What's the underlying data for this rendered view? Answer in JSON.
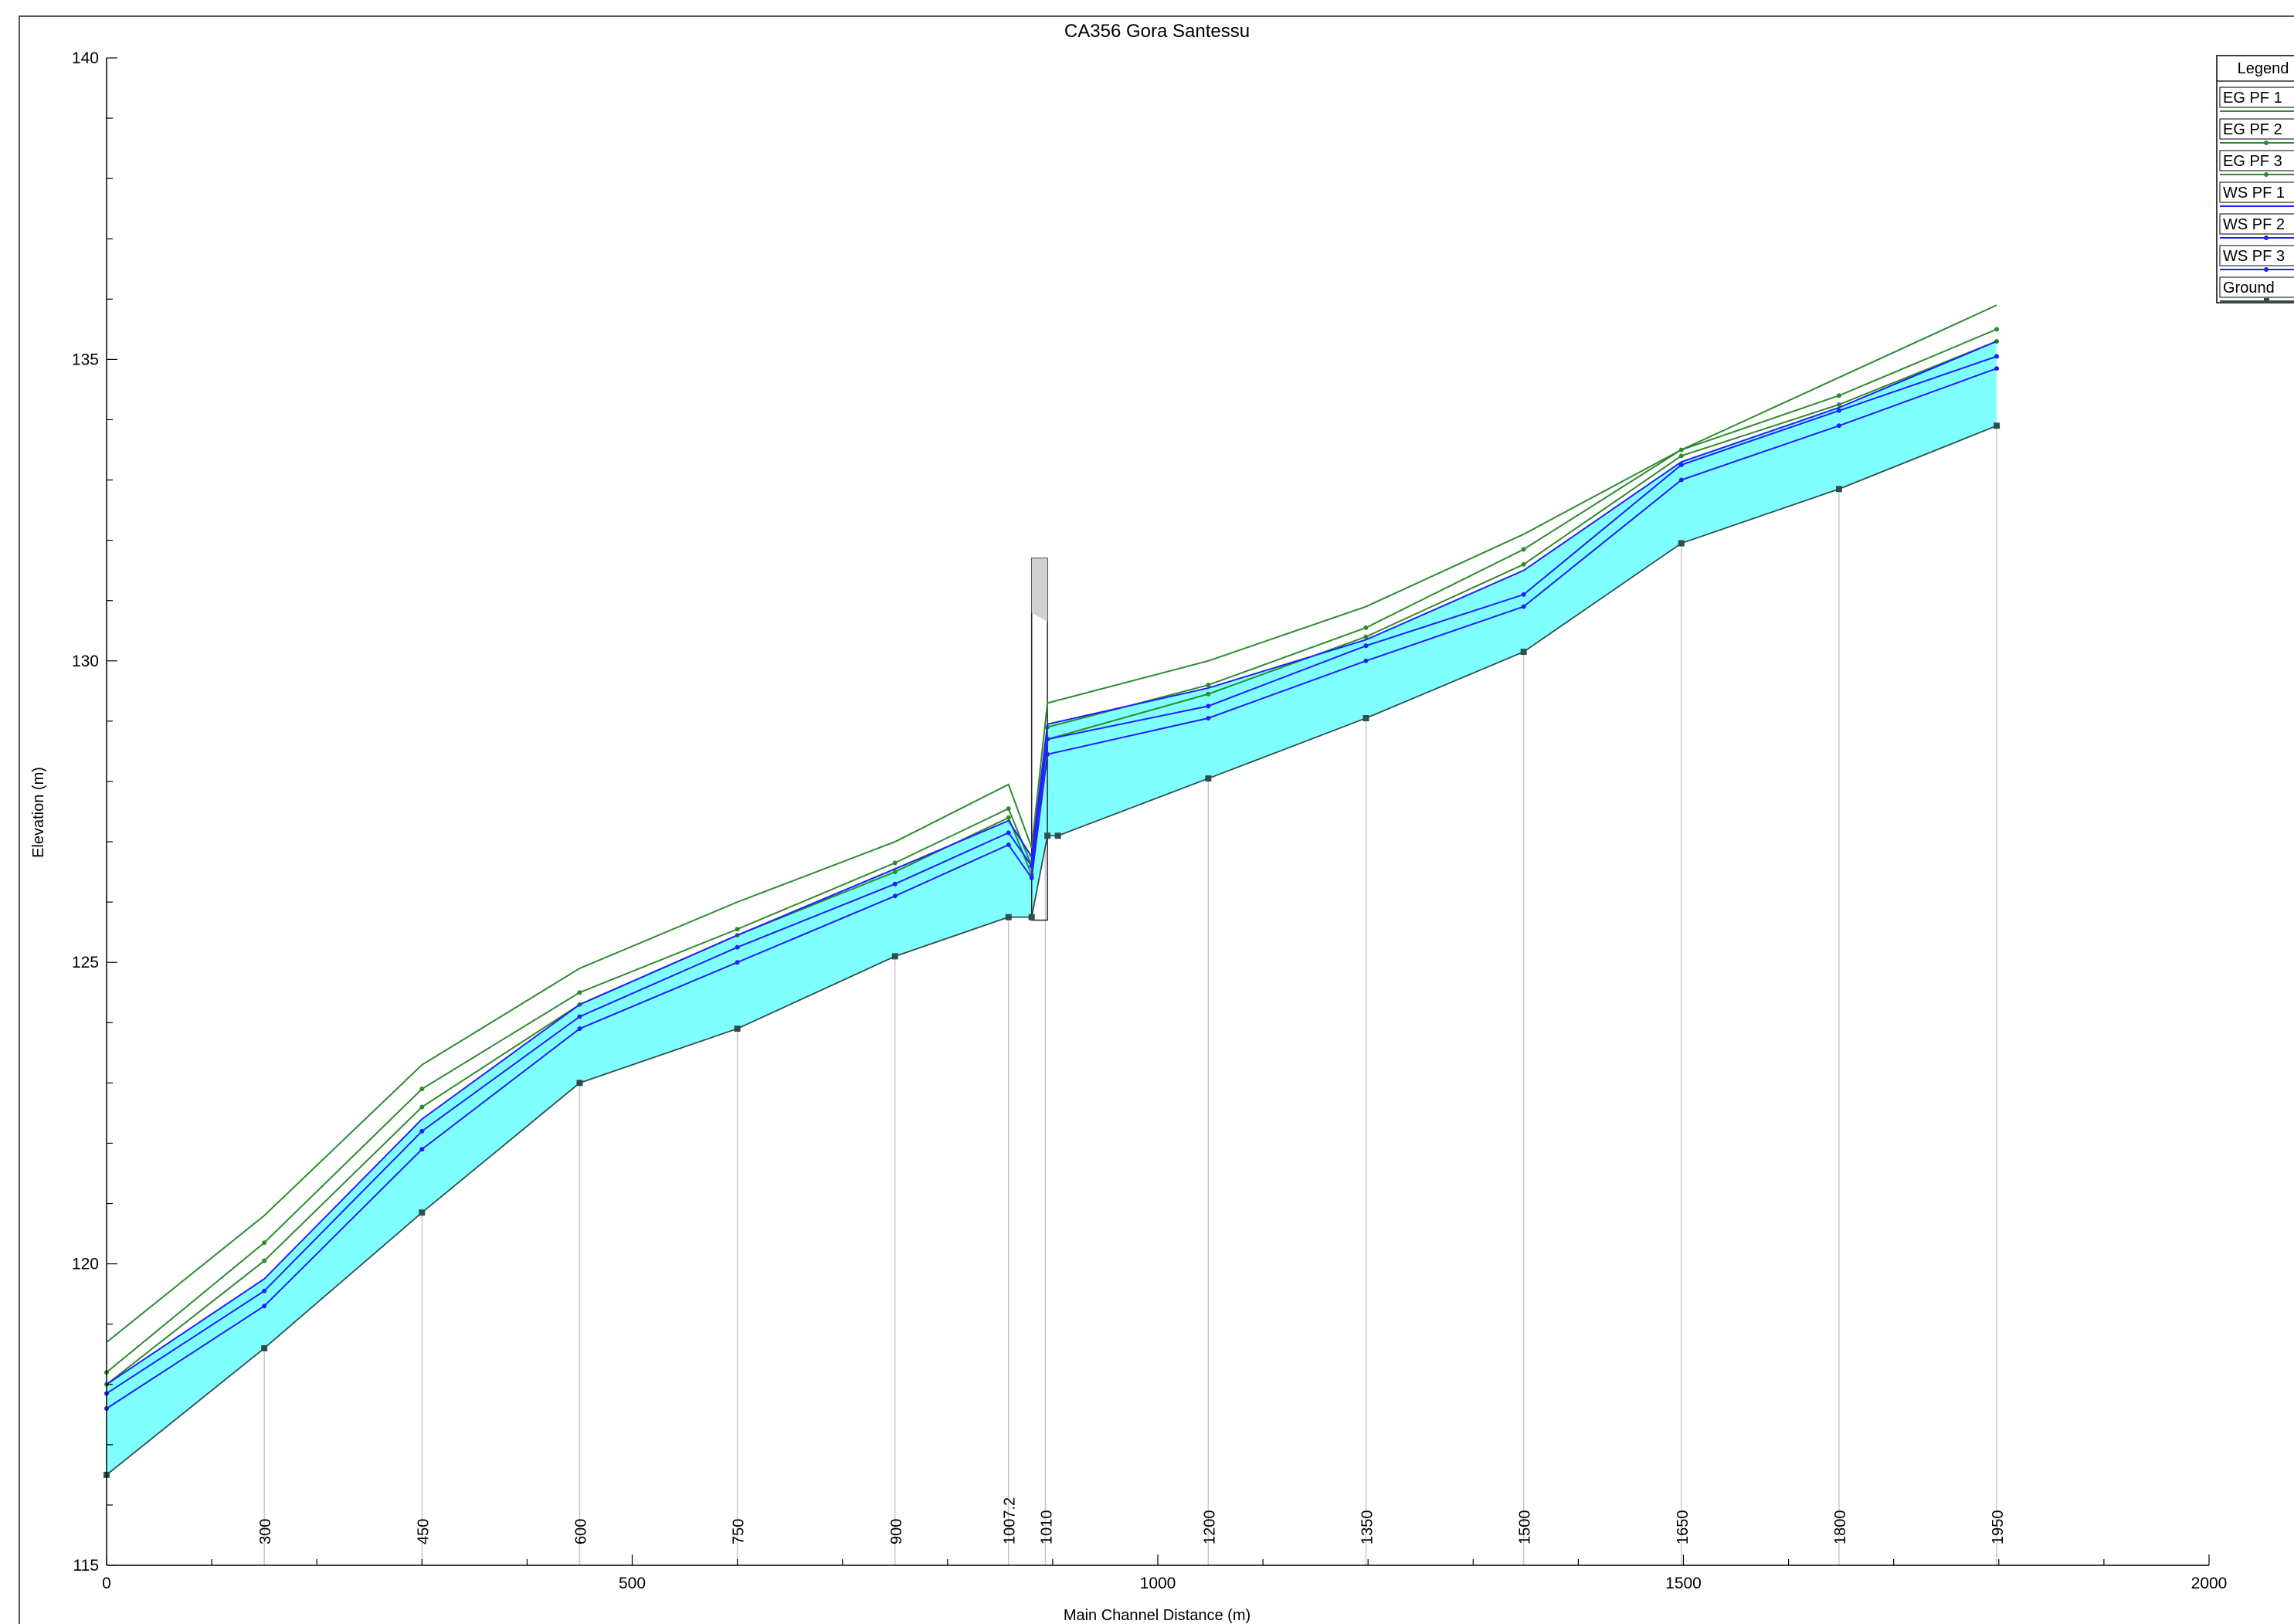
{
  "chart_data": {
    "type": "line",
    "title": "CA356 Gora Santessu",
    "xlabel": "Main Channel Distance (m)",
    "ylabel": "Elevation (m)",
    "xlim": [
      0,
      2000
    ],
    "ylim": [
      115,
      140
    ],
    "x_ticks": [
      0,
      500,
      1000,
      1500,
      2000
    ],
    "y_ticks": [
      115,
      120,
      125,
      130,
      135,
      140
    ],
    "grid": false,
    "legend": {
      "title": "Legend",
      "placement": "top-right"
    },
    "fill_color": "#80ffff",
    "structure": {
      "type": "bridge",
      "x_start": 880,
      "x_end": 895,
      "top": 131.7,
      "bottom": 125.7
    },
    "stations": [
      {
        "label": "300",
        "x": 150
      },
      {
        "label": "450",
        "x": 300
      },
      {
        "label": "600",
        "x": 450
      },
      {
        "label": "750",
        "x": 600
      },
      {
        "label": "900",
        "x": 750
      },
      {
        "label": "1007.2",
        "x": 858
      },
      {
        "label": "1010",
        "x": 893
      },
      {
        "label": "1200",
        "x": 1048
      },
      {
        "label": "1350",
        "x": 1198
      },
      {
        "label": "1500",
        "x": 1348
      },
      {
        "label": "1650",
        "x": 1498
      },
      {
        "label": "1800",
        "x": 1648
      },
      {
        "label": "1950",
        "x": 1798
      }
    ],
    "series": [
      {
        "name": "EG PF 1",
        "color": "#2e8b2e",
        "marker": "none",
        "role": "eg",
        "x": [
          0,
          150,
          300,
          450,
          600,
          750,
          858,
          880,
          895,
          1048,
          1198,
          1348,
          1498,
          1648,
          1798
        ],
        "y": [
          118.7,
          120.8,
          123.3,
          124.9,
          126.0,
          127.0,
          127.95,
          126.9,
          129.3,
          130.0,
          130.9,
          132.1,
          133.5,
          134.7,
          135.9
        ]
      },
      {
        "name": "EG PF 2",
        "color": "#2e8b2e",
        "marker": "tick",
        "role": "eg",
        "x": [
          0,
          150,
          300,
          450,
          600,
          750,
          858,
          880,
          895,
          1048,
          1198,
          1348,
          1498,
          1648,
          1798
        ],
        "y": [
          118.2,
          120.35,
          122.9,
          124.5,
          125.55,
          126.65,
          127.55,
          126.6,
          128.9,
          129.6,
          130.55,
          131.85,
          133.5,
          134.4,
          135.5
        ]
      },
      {
        "name": "EG PF 3",
        "color": "#2e8b2e",
        "marker": "tick",
        "role": "eg",
        "x": [
          0,
          150,
          300,
          450,
          600,
          750,
          858,
          880,
          895,
          1048,
          1198,
          1348,
          1498,
          1648,
          1798
        ],
        "y": [
          118.0,
          120.05,
          122.6,
          124.3,
          125.45,
          126.5,
          127.4,
          126.45,
          128.7,
          129.45,
          130.4,
          131.6,
          133.4,
          134.25,
          135.3
        ]
      },
      {
        "name": "WS PF 1",
        "color": "#2020ff",
        "marker": "none",
        "role": "ws",
        "x": [
          0,
          150,
          300,
          450,
          600,
          750,
          858,
          880,
          895,
          1048,
          1198,
          1348,
          1498,
          1648,
          1798
        ],
        "y": [
          118.0,
          119.75,
          122.4,
          124.3,
          125.45,
          126.55,
          127.35,
          126.75,
          128.95,
          129.55,
          130.35,
          131.5,
          133.3,
          134.2,
          135.3
        ]
      },
      {
        "name": "WS PF 2",
        "color": "#2020ff",
        "marker": "tick",
        "role": "ws",
        "x": [
          0,
          150,
          300,
          450,
          600,
          750,
          858,
          880,
          895,
          1048,
          1198,
          1348,
          1498,
          1648,
          1798
        ],
        "y": [
          117.85,
          119.55,
          122.2,
          124.1,
          125.25,
          126.3,
          127.15,
          126.6,
          128.7,
          129.25,
          130.25,
          131.1,
          133.25,
          134.15,
          135.05
        ]
      },
      {
        "name": "WS PF 3",
        "color": "#2020ff",
        "marker": "tick",
        "role": "ws",
        "x": [
          0,
          150,
          300,
          450,
          600,
          750,
          858,
          880,
          895,
          1048,
          1198,
          1348,
          1498,
          1648,
          1798
        ],
        "y": [
          117.6,
          119.3,
          121.9,
          123.9,
          125.0,
          126.1,
          126.95,
          126.4,
          128.45,
          129.05,
          130.0,
          130.9,
          133.0,
          133.9,
          134.85
        ]
      },
      {
        "name": "Ground",
        "color": "#2f4f4f",
        "marker": "square",
        "role": "ground",
        "x": [
          0,
          150,
          300,
          450,
          600,
          750,
          858,
          880,
          895,
          905,
          1048,
          1198,
          1348,
          1498,
          1648,
          1798
        ],
        "y": [
          116.5,
          118.6,
          120.85,
          123.0,
          123.9,
          125.1,
          125.75,
          125.75,
          127.1,
          127.1,
          128.05,
          129.05,
          130.15,
          131.95,
          132.85,
          133.9
        ]
      }
    ]
  }
}
